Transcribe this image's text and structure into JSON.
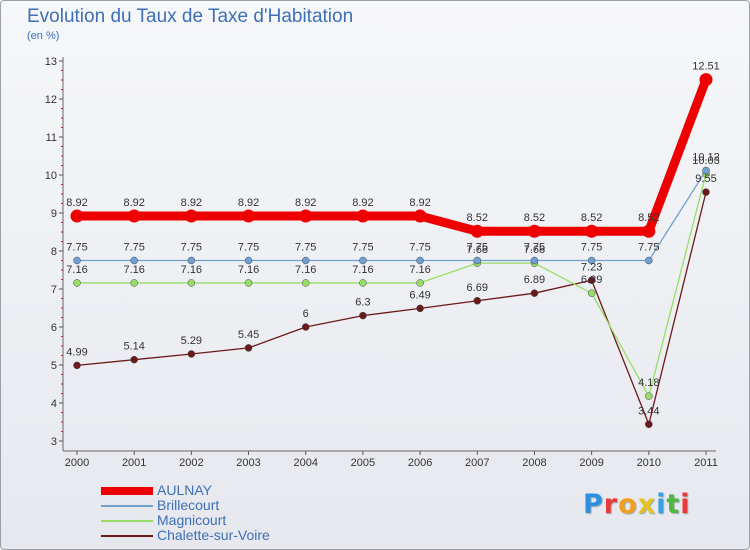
{
  "header": {
    "title": "Evolution du Taux de Taxe d'Habitation",
    "subtitle": "(en %)"
  },
  "logo": {
    "text": "Proxiti",
    "colors": [
      "#2e8ee0",
      "#e83a3a",
      "#f0a020",
      "#e8c020",
      "#3aa0e0",
      "#50b840",
      "#e83a3a"
    ]
  },
  "chart_data": {
    "type": "line",
    "title": "Evolution du Taux de Taxe d'Habitation",
    "ylabel": "(en %)",
    "x": [
      "2000",
      "2001",
      "2002",
      "2003",
      "2004",
      "2005",
      "2006",
      "2007",
      "2008",
      "2009",
      "2010",
      "2011"
    ],
    "ylim": [
      3,
      13
    ],
    "yticks": [
      "3",
      "4",
      "5",
      "6",
      "7",
      "8",
      "9",
      "10",
      "11",
      "12",
      "13"
    ],
    "grid": false,
    "legend_position": "bottom-left",
    "series": [
      {
        "name": "AULNAY",
        "color": "#ee0000",
        "values": [
          8.92,
          8.92,
          8.92,
          8.92,
          8.92,
          8.92,
          8.92,
          8.52,
          8.52,
          8.52,
          8.52,
          12.51
        ],
        "labels": [
          "8.92",
          "8.92",
          "8.92",
          "8.92",
          "8.92",
          "8.92",
          "8.92",
          "8.52",
          "8.52",
          "8.52",
          "8.52",
          "12.51"
        ]
      },
      {
        "name": "Brillecourt",
        "color": "#6fa0d0",
        "values": [
          7.75,
          7.75,
          7.75,
          7.75,
          7.75,
          7.75,
          7.75,
          7.75,
          7.75,
          7.75,
          7.75,
          10.12
        ],
        "labels": [
          "7.75",
          "7.75",
          "7.75",
          "7.75",
          "7.75",
          "7.75",
          "7.75",
          "7.75",
          "7.75",
          "7.75",
          "7.75",
          "10.12"
        ]
      },
      {
        "name": "Magnicourt",
        "color": "#99dd66",
        "values": [
          7.16,
          7.16,
          7.16,
          7.16,
          7.16,
          7.16,
          7.16,
          7.68,
          7.68,
          6.89,
          4.18,
          10.03
        ],
        "labels": [
          "7.16",
          "7.16",
          "7.16",
          "7.16",
          "7.16",
          "7.16",
          "7.16",
          "7.68",
          "7.68",
          "6.89",
          "4.18",
          "10.03"
        ]
      },
      {
        "name": "Chalette-sur-Voire",
        "color": "#6b1a1a",
        "values": [
          4.99,
          5.14,
          5.29,
          5.45,
          6,
          6.3,
          6.49,
          6.69,
          6.89,
          7.23,
          3.44,
          9.55
        ],
        "labels": [
          "4.99",
          "5.14",
          "5.29",
          "5.45",
          "6",
          "6.3",
          "6.49",
          "6.69",
          "6.89",
          "7.23",
          "3.44",
          "9.55"
        ]
      }
    ]
  }
}
